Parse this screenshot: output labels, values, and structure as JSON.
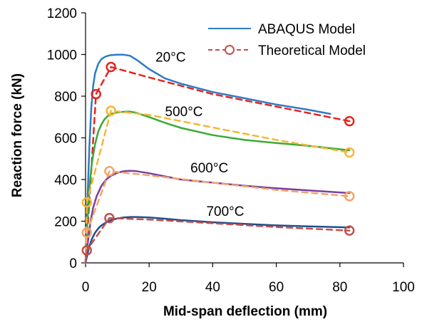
{
  "chart_data": {
    "type": "line",
    "title": "",
    "xlabel": "Mid-span deflection (mm)",
    "ylabel": "Reaction force (kN)",
    "xlim": [
      0,
      100
    ],
    "ylim": [
      0,
      1200
    ],
    "xticks": [
      0,
      20,
      40,
      60,
      80,
      100
    ],
    "yticks": [
      0,
      200,
      400,
      600,
      800,
      1000,
      1200
    ],
    "grid": false,
    "legend": {
      "placement": "top-right",
      "entries": [
        "ABAQUS  Model",
        "Theoretical Model"
      ]
    },
    "temperature_labels": [
      {
        "text": "20°C",
        "x": 22,
        "y": 965
      },
      {
        "text": "500°C",
        "x": 25,
        "y": 705
      },
      {
        "text": "600°C",
        "x": 33,
        "y": 435
      },
      {
        "text": "700°C",
        "x": 38,
        "y": 225
      }
    ],
    "series": [
      {
        "model": "ABAQUS",
        "temperature": "20°C",
        "color": "#2E7BC4",
        "style": "solid",
        "x": [
          0,
          0.6,
          1.2,
          1.8,
          2.4,
          3,
          4,
          5,
          6,
          7,
          8,
          10,
          12,
          14,
          16,
          20,
          25,
          30,
          40,
          50,
          60,
          70,
          77
        ],
        "y": [
          0,
          300,
          560,
          740,
          850,
          910,
          955,
          978,
          988,
          994,
          997,
          999,
          999,
          994,
          975,
          930,
          885,
          860,
          820,
          790,
          760,
          735,
          715
        ]
      },
      {
        "model": "Theoretical",
        "temperature": "20°C",
        "color": "#E52421",
        "style": "dashed",
        "x": [
          0,
          3.3,
          8,
          20,
          40,
          60,
          83
        ],
        "y": [
          0,
          810,
          940,
          890,
          810,
          750,
          680
        ],
        "markers": [
          [
            3.3,
            810
          ],
          [
            8,
            940
          ],
          [
            83,
            680
          ]
        ]
      },
      {
        "model": "ABAQUS",
        "temperature": "500°C",
        "color": "#3AAA35",
        "style": "solid",
        "x": [
          0,
          0.6,
          1.2,
          2,
          3,
          4,
          5,
          6,
          7,
          8,
          10,
          12,
          14,
          16,
          20,
          25,
          30,
          40,
          50,
          60,
          70,
          83
        ],
        "y": [
          0,
          200,
          360,
          480,
          570,
          630,
          665,
          690,
          705,
          715,
          722,
          725,
          726,
          720,
          700,
          672,
          648,
          613,
          590,
          575,
          562,
          540
        ]
      },
      {
        "model": "Theoretical",
        "temperature": "500°C",
        "color": "#F6B537",
        "style": "dashed",
        "x": [
          0,
          0.4,
          8,
          20,
          40,
          60,
          83
        ],
        "y": [
          0,
          290,
          730,
          710,
          650,
          590,
          530
        ],
        "markers": [
          [
            0.4,
            290
          ],
          [
            8,
            730
          ],
          [
            83,
            530
          ]
        ]
      },
      {
        "model": "ABAQUS",
        "temperature": "600°C",
        "color": "#7A3FA0",
        "style": "solid",
        "x": [
          0,
          0.8,
          1.6,
          2.4,
          3.5,
          5,
          6.5,
          8,
          10,
          12,
          14,
          16,
          20,
          25,
          30,
          40,
          50,
          60,
          70,
          83
        ],
        "y": [
          0,
          110,
          200,
          265,
          320,
          370,
          400,
          418,
          432,
          440,
          442,
          440,
          430,
          415,
          400,
          385,
          370,
          358,
          348,
          335
        ]
      },
      {
        "model": "Theoretical",
        "temperature": "600°C",
        "color": "#F3A467",
        "style": "dashed",
        "x": [
          0,
          0.4,
          7.5,
          20,
          40,
          60,
          83
        ],
        "y": [
          0,
          145,
          440,
          420,
          385,
          350,
          320
        ],
        "markers": [
          [
            0.4,
            145
          ],
          [
            7.5,
            440
          ],
          [
            83,
            320
          ]
        ]
      },
      {
        "model": "ABAQUS",
        "temperature": "700°C",
        "color": "#1F4E8C",
        "style": "solid",
        "x": [
          0,
          1,
          2,
          3,
          4,
          5,
          6.5,
          8,
          10,
          12,
          14,
          16,
          20,
          25,
          30,
          40,
          50,
          60,
          70,
          83
        ],
        "y": [
          0,
          70,
          115,
          145,
          165,
          180,
          195,
          205,
          213,
          218,
          220,
          220,
          218,
          212,
          205,
          195,
          187,
          180,
          175,
          170
        ]
      },
      {
        "model": "Theoretical",
        "temperature": "700°C",
        "color": "#C0504D",
        "style": "dashed",
        "x": [
          0,
          0.4,
          7.5,
          20,
          40,
          60,
          83
        ],
        "y": [
          0,
          60,
          215,
          208,
          190,
          172,
          155
        ],
        "markers": [
          [
            0.4,
            60
          ],
          [
            7.5,
            215
          ],
          [
            83,
            155
          ]
        ]
      }
    ]
  }
}
